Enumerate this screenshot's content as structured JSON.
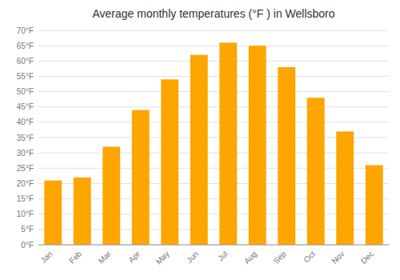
{
  "chart_data": {
    "type": "bar",
    "title": "Average monthly temperatures (°F ) in Wellsboro",
    "categories": [
      "Jan",
      "Feb",
      "Mar",
      "Apr",
      "May",
      "Jun",
      "Jul",
      "Aug",
      "Sep",
      "Oct",
      "Nov",
      "Dec"
    ],
    "values": [
      21,
      22,
      32,
      44,
      54,
      62,
      66,
      65,
      58,
      48,
      37,
      26
    ],
    "color": "#FFA500",
    "ylim": [
      0,
      70
    ],
    "yticks": [
      {
        "value": 0,
        "label": "0°F"
      },
      {
        "value": 5,
        "label": "5°F"
      },
      {
        "value": 10,
        "label": "10°F"
      },
      {
        "value": 15,
        "label": "15°F"
      },
      {
        "value": 20,
        "label": "20°F"
      },
      {
        "value": 25,
        "label": "25°F"
      },
      {
        "value": 30,
        "label": "30°F"
      },
      {
        "value": 35,
        "label": "35°F"
      },
      {
        "value": 40,
        "label": "40°F"
      },
      {
        "value": 45,
        "label": "45°F"
      },
      {
        "value": 50,
        "label": "50°F"
      },
      {
        "value": 55,
        "label": "55°F"
      },
      {
        "value": 60,
        "label": "60°F"
      },
      {
        "value": 65,
        "label": "65°F"
      },
      {
        "value": 70,
        "label": "70°F"
      }
    ],
    "grid": true
  }
}
